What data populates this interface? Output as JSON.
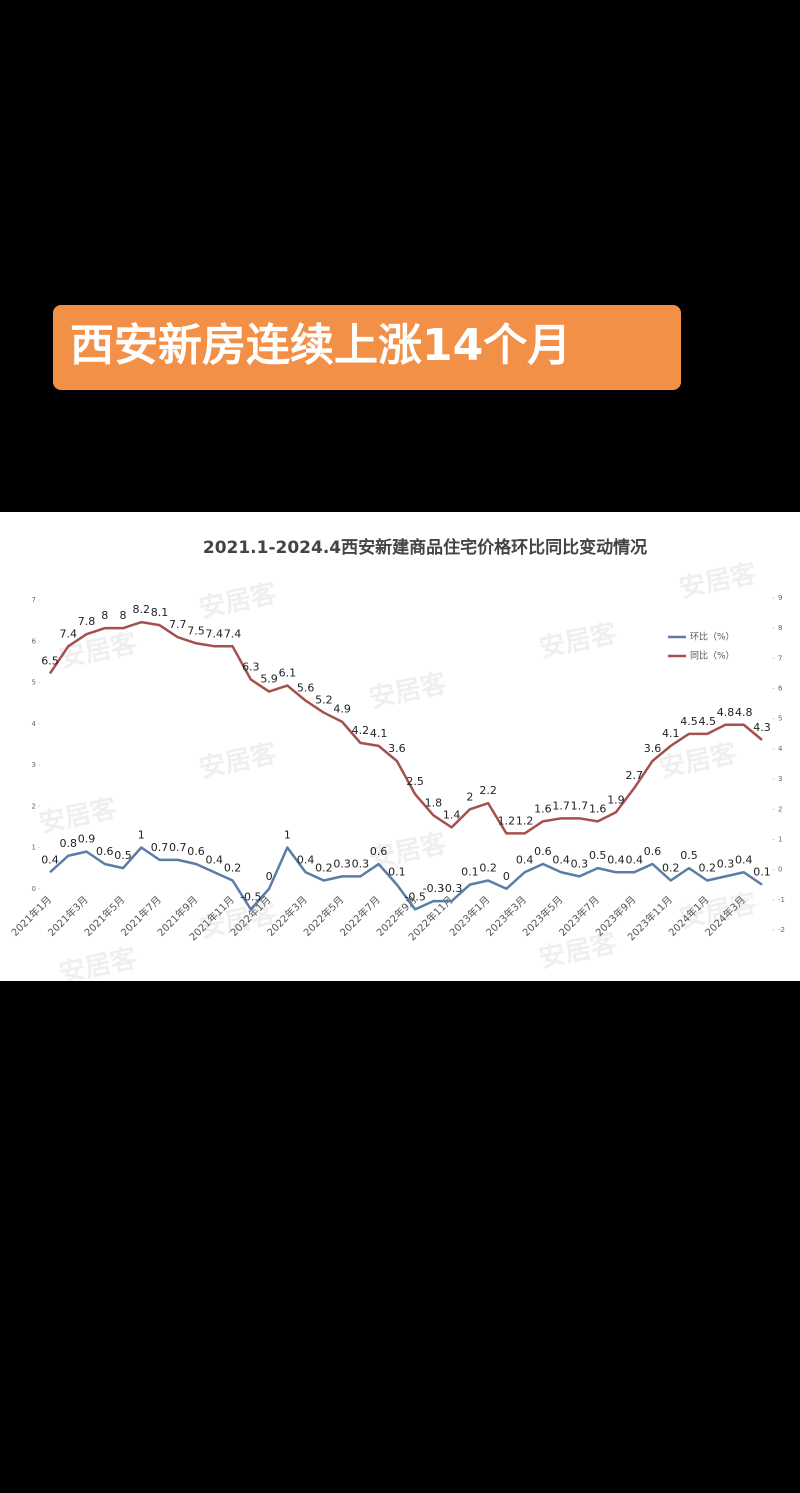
{
  "banner": "西安新房连续上涨14个月",
  "chart_data": {
    "type": "line",
    "title": "2021.1-2024.4西安新建商品住宅价格环比同比变动情况",
    "watermark": "安居客",
    "categories": [
      "2021年1月",
      null,
      "2021年3月",
      null,
      "2021年5月",
      null,
      "2021年7月",
      null,
      "2021年9月",
      null,
      "2021年11月",
      null,
      "2022年1月",
      null,
      "2022年3月",
      null,
      "2022年5月",
      null,
      "2022年7月",
      null,
      "2022年9月",
      null,
      "2022年11月",
      null,
      "2023年1月",
      null,
      "2023年3月",
      null,
      "2023年5月",
      null,
      "2023年7月",
      null,
      "2023年9月",
      null,
      "2023年11月",
      null,
      "2024年1月",
      null,
      "2024年3月",
      null
    ],
    "series": [
      {
        "name": "环比（%）",
        "color": "#5b7ba8",
        "axis": "y",
        "values": [
          0.4,
          0.8,
          0.9,
          0.6,
          0.5,
          1,
          0.7,
          0.7,
          0.6,
          0.4,
          0.2,
          -0.5,
          0,
          1,
          0.4,
          0.2,
          0.3,
          0.3,
          0.6,
          0.1,
          -0.5,
          -0.3,
          -0.3,
          0.1,
          0.2,
          0,
          0.4,
          0.6,
          0.4,
          0.3,
          0.5,
          0.4,
          0.4,
          0.6,
          0.2,
          0.5,
          0.2,
          0.3,
          0.4,
          0.1
        ]
      },
      {
        "name": "同比（%）",
        "color": "#a5504e",
        "axis": "y2",
        "values": [
          6.5,
          7.4,
          7.8,
          8,
          8,
          8.2,
          8.1,
          7.7,
          7.5,
          7.4,
          7.4,
          6.3,
          5.9,
          6.1,
          5.6,
          5.2,
          4.9,
          4.2,
          4.1,
          3.6,
          2.5,
          1.8,
          1.4,
          2,
          2.2,
          1.2,
          1.2,
          1.6,
          1.7,
          1.7,
          1.6,
          1.9,
          2.7,
          3.6,
          4.1,
          4.5,
          4.5,
          4.8,
          4.8,
          4.3
        ]
      }
    ],
    "ylim": [
      -1,
      7
    ],
    "yticks": [
      0,
      1,
      2,
      3,
      4,
      5,
      6,
      7
    ],
    "y2lim": [
      -2,
      9
    ],
    "y2ticks": [
      -2,
      -1,
      0,
      1,
      2,
      3,
      4,
      5,
      6,
      7,
      8,
      9
    ],
    "legend": "upper right"
  }
}
